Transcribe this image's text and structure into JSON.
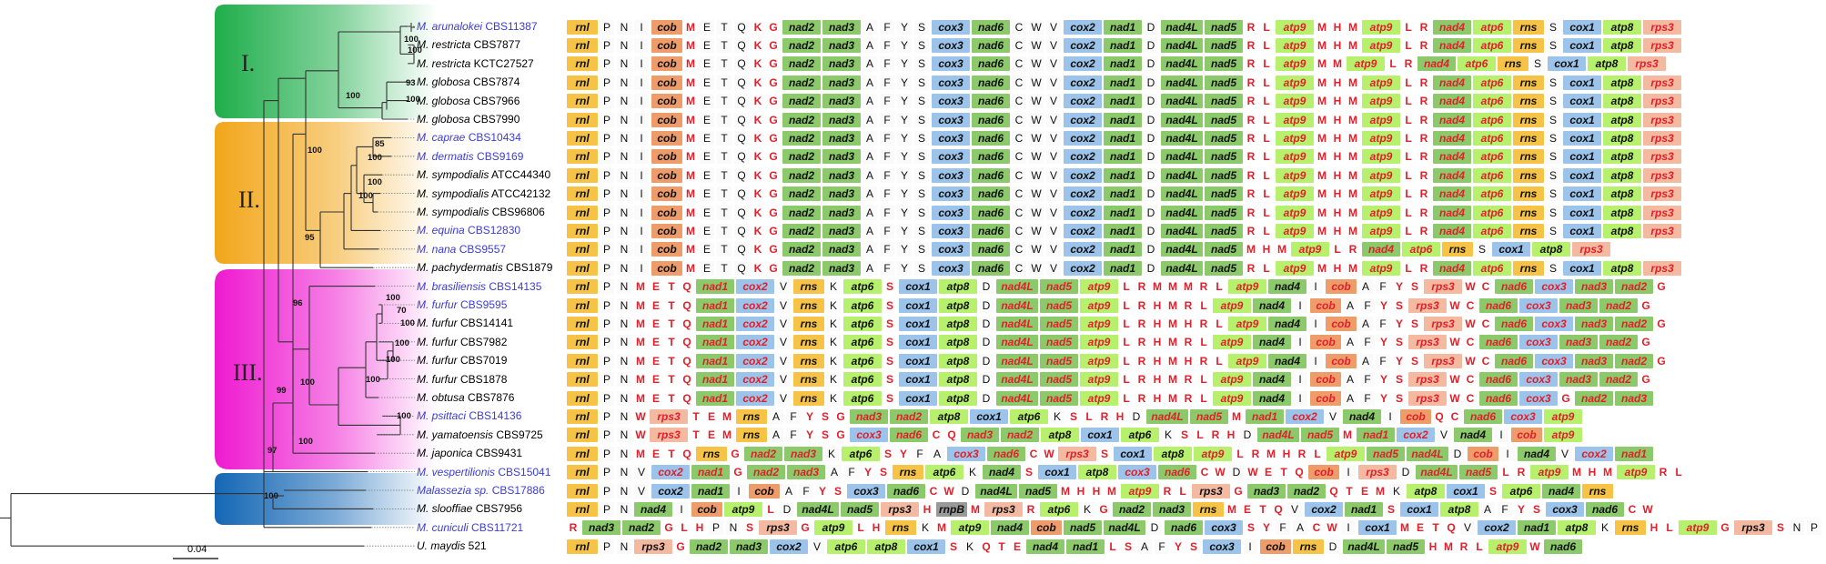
{
  "scale_label": "0.04",
  "clades": [
    "I.",
    "II.",
    "III."
  ],
  "colors": {
    "rnl": "#f6c346",
    "cob": "#ef9c6b",
    "nad": "#8cc96a",
    "atp": "#b7f06d",
    "rps": "#f3b9a1",
    "rns": "#f6c346",
    "cox1": "#9cc4ea",
    "cox": "#9cc4ea",
    "nad_dark": "#5fb04f",
    "rnpB": "#999999",
    "red_text": "#e0202b",
    "clade1": "#1fae4b",
    "clade2": "#f2a61a",
    "clade3": "#ee1ad0",
    "clade4": "#1467b5"
  },
  "bootstraps": [
    "100",
    "100",
    "100",
    "93",
    "100",
    "100",
    "85",
    "100",
    "100",
    "100",
    "95",
    "100",
    "100",
    "70",
    "100",
    "100",
    "100",
    "100",
    "100",
    "96",
    "99",
    "100",
    "97",
    "100"
  ],
  "taxa": [
    {
      "species": "M. arunalokei",
      "strain": "CBS11387",
      "blue": true
    },
    {
      "species": "M. restricta",
      "strain": "CBS7877",
      "blue": false
    },
    {
      "species": "M. restricta",
      "strain": "KCTC27527",
      "blue": false
    },
    {
      "species": "M. globosa",
      "strain": "CBS7874",
      "blue": false
    },
    {
      "species": "M. globosa",
      "strain": "CBS7966",
      "blue": false
    },
    {
      "species": "M. globosa",
      "strain": "CBS7990",
      "blue": false
    },
    {
      "species": "M. caprae",
      "strain": "CBS10434",
      "blue": true
    },
    {
      "species": "M. dermatis",
      "strain": "CBS9169",
      "blue": true
    },
    {
      "species": "M. sympodialis",
      "strain": "ATCC44340",
      "blue": false
    },
    {
      "species": "M. sympodialis",
      "strain": "ATCC42132",
      "blue": false
    },
    {
      "species": "M. sympodialis",
      "strain": "CBS96806",
      "blue": false
    },
    {
      "species": "M. equina",
      "strain": "CBS12830",
      "blue": true
    },
    {
      "species": "M. nana",
      "strain": "CBS9557",
      "blue": true
    },
    {
      "species": "M. pachydermatis",
      "strain": "CBS1879",
      "blue": false
    },
    {
      "species": "M. brasiliensis",
      "strain": "CBS14135",
      "blue": true
    },
    {
      "species": "M. furfur",
      "strain": "CBS9595",
      "blue": true
    },
    {
      "species": "M. furfur",
      "strain": "CBS14141",
      "blue": false
    },
    {
      "species": "M. furfur",
      "strain": "CBS7982",
      "blue": false
    },
    {
      "species": "M. furfur",
      "strain": "CBS7019",
      "blue": false
    },
    {
      "species": "M. furfur",
      "strain": "CBS1878",
      "blue": false
    },
    {
      "species": "M. obtusa",
      "strain": "CBS7876",
      "blue": false
    },
    {
      "species": "M. psittaci",
      "strain": "CBS14136",
      "blue": true
    },
    {
      "species": "M. yamatoensis",
      "strain": "CBS9725",
      "blue": false
    },
    {
      "species": "M. japonica",
      "strain": "CBS9431",
      "blue": false
    },
    {
      "species": "M. vespertilionis",
      "strain": "CBS15041",
      "blue": true
    },
    {
      "species": "Malassezia sp.",
      "strain": "CBS17886",
      "blue": true
    },
    {
      "species": "M. slooffiae",
      "strain": "CBS7956",
      "blue": false
    },
    {
      "species": "M. cuniculi",
      "strain": "CBS11721",
      "blue": true
    },
    {
      "species": "U. maydis",
      "strain": "521",
      "blue": false
    }
  ],
  "gene_orders": [
    "rnl P N I cob M E T Q K G nad2 nad3 A F Y S cox3 nad6 C W V cox2 nad1 D nad4L nad5 R L atp9 M H M atp9 L R nad4 atp6 rns S cox1 atp8 rps3",
    "rnl P N I cob M E T Q K G nad2 nad3 A F Y S cox3 nad6 C W V cox2 nad1 D nad4L nad5 R L atp9 M H M atp9 L R nad4 atp6 rns S cox1 atp8 rps3",
    "rnl P N I cob M E T Q K G nad2 nad3 A F Y S cox3 nad6 C W V cox2 nad1 D nad4L nad5 R L atp9 M M atp9 L R nad4 atp6 rns S cox1 atp8 rps3",
    "rnl P N I cob M E T Q K G nad2 nad3 A F Y S cox3 nad6 C W V cox2 nad1 D nad4L nad5 R L atp9 M H M atp9 L R nad4 atp6 rns S cox1 atp8 rps3",
    "rnl P N I cob M E T Q K G nad2 nad3 A F Y S cox3 nad6 C W V cox2 nad1 D nad4L nad5 R L atp9 M H M atp9 L R nad4 atp6 rns S cox1 atp8 rps3",
    "rnl P N I cob M E T Q K G nad2 nad3 A F Y S cox3 nad6 C W V cox2 nad1 D nad4L nad5 R L atp9 M H M atp9 L R nad4 atp6 rns S cox1 atp8 rps3",
    "rnl P N I cob M E T Q K G nad2 nad3 A F Y S cox3 nad6 C W V cox2 nad1 D nad4L nad5 R L atp9 M H M atp9 L R nad4 atp6 rns S cox1 atp8 rps3",
    "rnl P N I cob M E T Q K G nad2 nad3 A F Y S cox3 nad6 C W V cox2 nad1 D nad4L nad5 R L atp9 M H M atp9 L R nad4 atp6 rns S cox1 atp8 rps3",
    "rnl P N I cob M E T Q K G nad2 nad3 A F Y S cox3 nad6 C W V cox2 nad1 D nad4L nad5 R L atp9 M H M atp9 L R nad4 atp6 rns S cox1 atp8 rps3",
    "rnl P N I cob M E T Q K G nad2 nad3 A F Y S cox3 nad6 C W V cox2 nad1 D nad4L nad5 R L atp9 M H M atp9 L R nad4 atp6 rns S cox1 atp8 rps3",
    "rnl P N I cob M E T Q K G nad2 nad3 A F Y S cox3 nad6 C W V cox2 nad1 D nad4L nad5 R L atp9 M H M atp9 L R nad4 atp6 rns S cox1 atp8 rps3",
    "rnl P N I cob M E T Q K G nad2 nad3 A F Y S cox3 nad6 C W V cox2 nad1 D nad4L nad5 R L atp9 M H M atp9 L R nad4 atp6 rns S cox1 atp8 rps3",
    "rnl P N I cob M E T Q K G nad2 nad3 A F Y S cox3 nad6 C W V cox2 nad1 D nad4L nad5 M H M atp9 L R nad4 atp6 rns S cox1 atp8 rps3",
    "rnl P N I cob M E T Q K G nad2 nad3 A F Y S cox3 nad6 C W V cox2 nad1 D nad4L nad5 R L atp9 M H M atp9 L R nad4 atp6 rns S cox1 atp8 rps3",
    "rnl P N M E T Q nad1 cox2 V rns K atp6 S cox1 atp8 D nad4L nad5 atp9 L R M M M R L atp9 nad4 I cob A F Y S rps3 W C nad6 cox3 nad3 nad2 G",
    "rnl P N M E T Q nad1 cox2 V rns K atp6 S cox1 atp8 D nad4L nad5 atp9 L R H M R L atp9 nad4 I cob A F Y S rps3 W C nad6 cox3 nad3 nad2 G",
    "rnl P N M E T Q nad1 cox2 V rns K atp6 S cox1 atp8 D nad4L nad5 atp9 L R H M H R L atp9 nad4 I cob A F Y S rps3 W C nad6 cox3 nad3 nad2 G",
    "rnl P N M E T Q nad1 cox2 V rns K atp6 S cox1 atp8 D nad4L nad5 atp9 L R H M R L atp9 nad4 I cob A F Y S rps3 W C nad6 cox3 nad3 nad2 G",
    "rnl P N M E T Q nad1 cox2 V rns K atp6 S cox1 atp8 D nad4L nad5 atp9 L R H M H R L atp9 nad4 I cob A F Y S rps3 W C nad6 cox3 nad3 nad2 G",
    "rnl P N M E T Q nad1 cox2 V rns K atp6 S cox1 atp8 D nad4L nad5 atp9 L R H M R L atp9 nad4 I cob A F Y S rps3 W C nad6 cox3 nad3 nad2 G",
    "rnl P N M E T Q nad1 cox2 V rns K atp6 S cox1 atp8 D nad4L nad5 atp9 L R H M R L atp9 nad4 I cob A F Y S rps3 W C nad6 cox3 G nad2 nad3",
    "rnl P N W rps3 T E M rns A F Y S G nad3 nad2 atp8 cox1 atp6 K S L R H D nad4L nad5 M nad1 cox2 V nad4 I cob Q C nad6 cox3 atp9",
    "rnl P N W rps3 T E M rns A F Y S G cox3 nad6 C Q nad3 nad2 atp8 cox1 atp6 K S L R H D nad4L nad5 M nad1 cox2 V nad4 I cob atp9",
    "rnl P N M E T Q rns G nad2 nad3 K atp6 S Y F A cox3 nad6 C W rps3 S cox1 atp8 atp9 L R M H R L atp9 nad5 nad4L D cob I nad4 V cox2 nad1",
    "rnl P N V cox2 nad1 G nad2 nad3 A F Y S rns atp6 K nad4 S cox1 atp8 cox3 nad6 C W D W E T Q cob I rps3 D nad4L nad5 L R atp9 M H M atp9 R L",
    "rnl P N V cox2 nad1 I cob A F Y S cox3 nad6 C W D nad4L nad5 M H H M atp9 R L rps3 G nad3 nad2 Q T E M K atp8 cox1 S atp6 nad4 rns",
    "rnl P N nad4 I cob atp9 L D nad4L nad5 rps3 H rnpB M rps3 R atp6 K G nad2 nad3 rns M E T Q V cox2 nad1 S cox1 atp8 A F Y S cox3 nad6 C W",
    "R nad3 nad2 G L H P N S rps3 G atp9 L H rns K M atp9 nad4 cob nad5 nad4L D nad6 cox3 S Y F A C W I cox1 M E T Q V cox2 nad1 atp8 K rns H L atp9 G rps3 S N P",
    "rnl P N rps3 G nad2 nad3 cox2 V atp6 atp8 cox1 S K Q T E nad4 nad1 L S A F Y S cox3 I cob rns D nad4L nad5 H M R L atp9 W nad6"
  ]
}
